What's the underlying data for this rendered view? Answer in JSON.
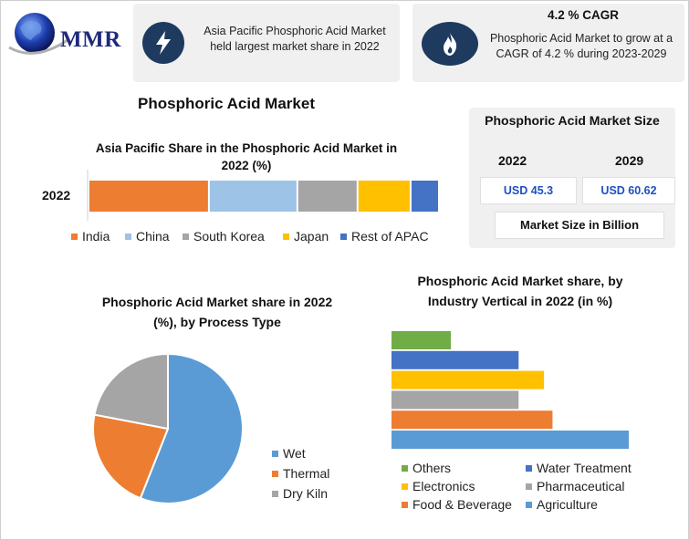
{
  "logo": {
    "text": "MMR"
  },
  "callout_left": {
    "text": "Asia Pacific Phosphoric Acid Market held largest market share in 2022",
    "icon": "lightning-icon"
  },
  "callout_right": {
    "title": "4.2 % CAGR",
    "text": "Phosphoric Acid Market to grow at a CAGR of 4.2 % during 2023-2029",
    "icon": "flame-icon"
  },
  "main_title": "Phosphoric Acid Market",
  "size_panel": {
    "title": "Phosphoric Acid Market Size",
    "year1": "2022",
    "year2": "2029",
    "value1": "USD 45.3",
    "value2": "USD 60.62",
    "unit": "Market Size in Billion"
  },
  "colors": {
    "india": "#ed7d31",
    "china": "#9dc3e6",
    "south_korea": "#a5a5a5",
    "japan": "#ffc000",
    "rest_apac": "#4472c4",
    "wet": "#5b9bd5",
    "thermal": "#ed7d31",
    "dry_kiln": "#a5a5a5",
    "others": "#70ad47",
    "water": "#4472c4",
    "electronics": "#ffc000",
    "pharma": "#a5a5a5",
    "food": "#ed7d31",
    "agri": "#5b9bd5",
    "icon_bg": "#1e3a5f"
  },
  "chart_data": [
    {
      "type": "bar",
      "orientation": "horizontal-stacked",
      "title": "Asia Pacific Share in the Phosphoric Acid Market in 2022 (%)",
      "categories": [
        "2022"
      ],
      "series": [
        {
          "name": "India",
          "values": [
            34
          ]
        },
        {
          "name": "China",
          "values": [
            25
          ]
        },
        {
          "name": "South Korea",
          "values": [
            17
          ]
        },
        {
          "name": "Japan",
          "values": [
            15
          ]
        },
        {
          "name": "Rest of APAC",
          "values": [
            8
          ]
        }
      ],
      "legend": "bottom"
    },
    {
      "type": "pie",
      "title": "Phosphoric Acid Market share in 2022 (%), by Process Type",
      "labels": [
        "Wet",
        "Thermal",
        "Dry Kiln"
      ],
      "values": [
        56,
        22,
        22
      ],
      "legend": "right"
    },
    {
      "type": "bar",
      "orientation": "horizontal",
      "title": "Phosphoric Acid Market share, by Industry Vertical in 2022 (in %)",
      "categories": [
        "Others",
        "Water Treatment",
        "Electronics",
        "Pharmaceutical",
        "Food & Beverage",
        "Agriculture"
      ],
      "values": [
        7,
        15,
        18,
        15,
        19,
        28
      ],
      "legend": "bottom"
    }
  ]
}
